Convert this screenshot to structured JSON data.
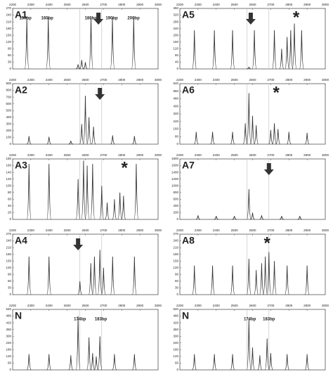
{
  "chart_data": [
    {
      "type": "line",
      "title": "A1",
      "xlim": [
        2200,
        3000
      ],
      "xticks": [
        2200,
        2300,
        2400,
        2500,
        2600,
        2700,
        2800,
        2900,
        3000
      ],
      "ylim": [
        0,
        270
      ],
      "yticks": [
        0,
        30,
        60,
        90,
        120,
        150,
        180,
        210,
        240,
        270
      ],
      "markers": [
        2570,
        2690
      ],
      "series": [
        {
          "color": "#333333",
          "x": [
            2278,
            2396,
            2560,
            2580,
            2600,
            2631,
            2749,
            2866
          ],
          "values": [
            230,
            230,
            20,
            40,
            30,
            230,
            230,
            230
          ]
        }
      ],
      "annotations": [
        {
          "text": "150bp",
          "x": 2270
        },
        {
          "text": "160bp",
          "x": 2390
        },
        {
          "text": "180bp",
          "x": 2630
        },
        {
          "text": "190bp",
          "x": 2745
        },
        {
          "text": "200bp",
          "x": 2865
        }
      ],
      "arrows": [
        2672
      ]
    },
    {
      "type": "line",
      "title": "A5",
      "xlim": [
        2200,
        3000
      ],
      "xticks": [
        2200,
        2300,
        2400,
        2500,
        2600,
        2700,
        2800,
        2900,
        3000
      ],
      "ylim": [
        0,
        360
      ],
      "yticks": [
        0,
        40,
        80,
        120,
        160,
        200,
        240,
        280,
        320,
        360
      ],
      "markers": [
        2570,
        2690
      ],
      "series": [
        {
          "color": "#333333",
          "x": [
            2280,
            2390,
            2490,
            2580,
            2610,
            2720,
            2760,
            2790,
            2810,
            2830,
            2870
          ],
          "values": [
            230,
            230,
            230,
            10,
            230,
            230,
            120,
            190,
            230,
            270,
            230
          ]
        }
      ],
      "annotations": [
        {
          "text": "*",
          "x": 2840
        }
      ],
      "arrows": [
        2590
      ]
    },
    {
      "type": "line",
      "title": "A2",
      "xlim": [
        2200,
        3000
      ],
      "xticks": [
        2200,
        2300,
        2400,
        2500,
        2600,
        2700,
        2800,
        2900,
        3000
      ],
      "ylim": [
        0,
        900
      ],
      "yticks": [
        0,
        100,
        200,
        300,
        400,
        500,
        600,
        700,
        800,
        900
      ],
      "markers": [
        2570,
        2690
      ],
      "series": [
        {
          "color": "#333333",
          "x": [
            2290,
            2400,
            2520,
            2580,
            2600,
            2620,
            2645,
            2750,
            2870
          ],
          "values": [
            120,
            110,
            50,
            300,
            720,
            400,
            260,
            130,
            120
          ]
        }
      ],
      "annotations": [],
      "arrows": [
        2680
      ]
    },
    {
      "type": "line",
      "title": "A6",
      "xlim": [
        2200,
        3000
      ],
      "xticks": [
        2200,
        2300,
        2400,
        2500,
        2600,
        2700,
        2800,
        2900,
        3000
      ],
      "ylim": [
        0,
        640
      ],
      "yticks": [
        0,
        80,
        160,
        240,
        320,
        400,
        480,
        560,
        640
      ],
      "markers": [
        2570,
        2690
      ],
      "series": [
        {
          "color": "#333333",
          "x": [
            2290,
            2380,
            2490,
            2560,
            2580,
            2600,
            2620,
            2700,
            2720,
            2740,
            2800,
            2900
          ],
          "values": [
            130,
            130,
            130,
            220,
            540,
            300,
            200,
            150,
            220,
            160,
            130,
            120
          ]
        }
      ],
      "annotations": [
        {
          "text": "*",
          "x": 2730
        }
      ],
      "arrows": []
    },
    {
      "type": "line",
      "title": "A3",
      "xlim": [
        2200,
        3000
      ],
      "xticks": [
        2200,
        2300,
        2400,
        2500,
        2600,
        2700,
        2800,
        2900,
        3000
      ],
      "ylim": [
        0,
        180
      ],
      "yticks": [
        0,
        20,
        40,
        60,
        80,
        100,
        120,
        140,
        160,
        180
      ],
      "markers": [
        2570,
        2690
      ],
      "series": [
        {
          "color": "#333333",
          "x": [
            2290,
            2400,
            2560,
            2590,
            2610,
            2640,
            2690,
            2720,
            2760,
            2790,
            2810,
            2880
          ],
          "values": [
            165,
            165,
            120,
            175,
            160,
            165,
            100,
            50,
            60,
            80,
            70,
            165
          ]
        }
      ],
      "annotations": [
        {
          "text": "*",
          "x": 2815
        }
      ],
      "arrows": []
    },
    {
      "type": "line",
      "title": "A7",
      "xlim": [
        2200,
        3000
      ],
      "xticks": [
        2200,
        2300,
        2400,
        2500,
        2600,
        2700,
        2800,
        2900,
        3000
      ],
      "ylim": [
        0,
        1800
      ],
      "yticks": [
        0,
        200,
        400,
        600,
        800,
        1000,
        1200,
        1400,
        1600,
        1800
      ],
      "markers": [
        2570,
        2690
      ],
      "series": [
        {
          "color": "#333333",
          "x": [
            2300,
            2400,
            2500,
            2580,
            2600,
            2650,
            2760,
            2860
          ],
          "values": [
            120,
            100,
            100,
            900,
            200,
            120,
            100,
            100
          ]
        }
      ],
      "annotations": [],
      "arrows": [
        2690
      ]
    },
    {
      "type": "line",
      "title": "A4",
      "xlim": [
        2200,
        3000
      ],
      "xticks": [
        2200,
        2300,
        2400,
        2500,
        2600,
        2700,
        2800,
        2900,
        3000
      ],
      "ylim": [
        0,
        270
      ],
      "yticks": [
        0,
        30,
        60,
        90,
        120,
        150,
        180,
        210,
        240,
        270
      ],
      "markers": [
        2570,
        2690
      ],
      "series": [
        {
          "color": "#333333",
          "x": [
            2290,
            2400,
            2570,
            2630,
            2650,
            2680,
            2700,
            2750,
            2870
          ],
          "values": [
            170,
            170,
            60,
            140,
            170,
            200,
            120,
            170,
            170
          ]
        }
      ],
      "annotations": [],
      "arrows": [
        2560
      ]
    },
    {
      "type": "line",
      "title": "A8",
      "xlim": [
        2200,
        3000
      ],
      "xticks": [
        2200,
        2300,
        2400,
        2500,
        2600,
        2700,
        2800,
        2900,
        3000
      ],
      "ylim": [
        0,
        270
      ],
      "yticks": [
        0,
        30,
        60,
        90,
        120,
        150,
        180,
        210,
        240,
        270
      ],
      "markers": [
        2570,
        2690
      ],
      "series": [
        {
          "color": "#333333",
          "x": [
            2280,
            2380,
            2490,
            2580,
            2620,
            2650,
            2670,
            2690,
            2720,
            2790,
            2900
          ],
          "values": [
            130,
            130,
            130,
            160,
            110,
            140,
            170,
            190,
            150,
            130,
            130
          ]
        }
      ],
      "annotations": [
        {
          "text": "*",
          "x": 2680
        }
      ],
      "arrows": []
    },
    {
      "type": "line",
      "title": "N",
      "xlim": [
        2200,
        3000
      ],
      "xticks": [
        2200,
        2300,
        2400,
        2500,
        2600,
        2700,
        2800,
        2900,
        3000
      ],
      "ylim": [
        0,
        540
      ],
      "yticks": [
        0,
        60,
        120,
        180,
        240,
        300,
        360,
        420,
        480,
        540
      ],
      "markers": [
        2570,
        2690
      ],
      "series": [
        {
          "color": "#333333",
          "x": [
            2290,
            2400,
            2520,
            2560,
            2620,
            2640,
            2660,
            2680,
            2760,
            2870
          ],
          "values": [
            140,
            140,
            130,
            480,
            290,
            150,
            120,
            300,
            140,
            140
          ]
        }
      ],
      "annotations": [
        {
          "text": "174bp",
          "x": 2570
        },
        {
          "text": "183bp",
          "x": 2685
        }
      ],
      "arrows": []
    },
    {
      "type": "line",
      "title": "N",
      "xlim": [
        2200,
        3000
      ],
      "xticks": [
        2200,
        2300,
        2400,
        2500,
        2600,
        2700,
        2800,
        2900,
        3000
      ],
      "ylim": [
        0,
        540
      ],
      "yticks": [
        0,
        60,
        120,
        180,
        240,
        300,
        360,
        420,
        480,
        540
      ],
      "markers": [
        2570,
        2690
      ],
      "series": [
        {
          "color": "#333333",
          "x": [
            2280,
            2390,
            2490,
            2580,
            2600,
            2640,
            2680,
            2700,
            2790,
            2900
          ],
          "values": [
            140,
            140,
            140,
            460,
            200,
            130,
            280,
            150,
            140,
            140
          ]
        }
      ],
      "annotations": [
        {
          "text": "174bp",
          "x": 2585
        },
        {
          "text": "183bp",
          "x": 2690
        }
      ],
      "arrows": []
    }
  ]
}
